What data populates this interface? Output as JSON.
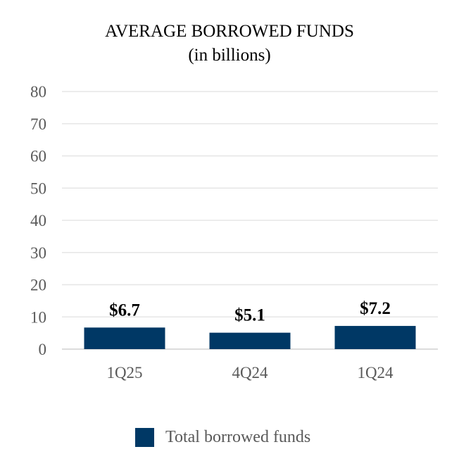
{
  "chart_data": {
    "type": "bar",
    "title": "AVERAGE BORROWED FUNDS",
    "subtitle": "(in billions)",
    "categories": [
      "1Q25",
      "4Q24",
      "1Q24"
    ],
    "series": [
      {
        "name": "Total borrowed funds",
        "values": [
          6.7,
          5.1,
          7.2
        ],
        "labels": [
          "$6.7",
          "$5.1",
          "$7.2"
        ],
        "color": "#003865"
      }
    ],
    "ylim": [
      0,
      80
    ],
    "yticks": [
      0,
      10,
      20,
      30,
      40,
      50,
      60,
      70,
      80
    ],
    "grid": true,
    "legend_position": "bottom"
  }
}
